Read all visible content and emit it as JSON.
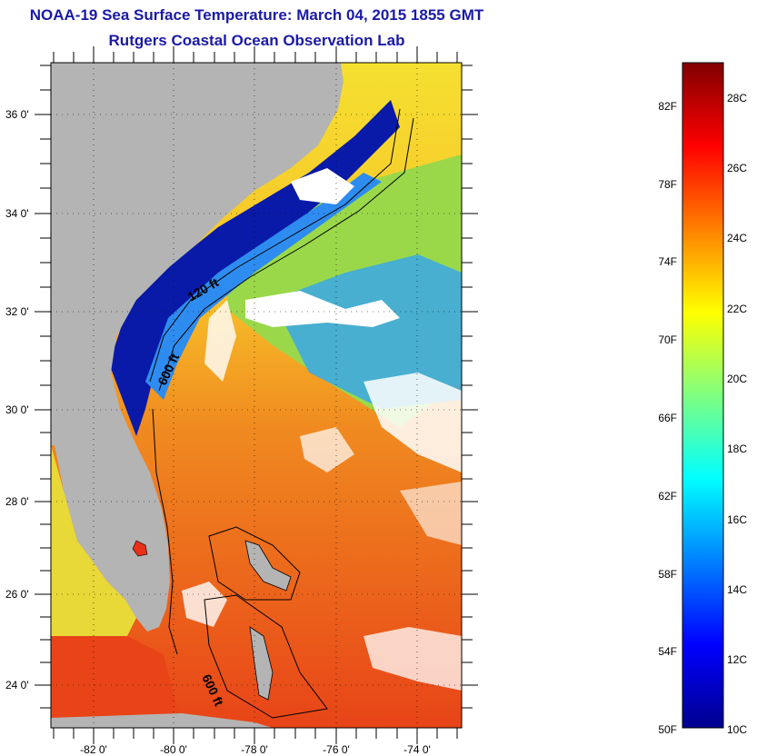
{
  "title": {
    "line1": "NOAA-19 Sea Surface Temperature:  March 04, 2015 1855 GMT",
    "line2": "Rutgers Coastal Ocean Observation Lab"
  },
  "map": {
    "lat_labels": [
      "36 0'",
      "34 0'",
      "32 0'",
      "30 0'",
      "28 0'",
      "26 0'",
      "24 0'"
    ],
    "lon_labels": [
      "-82 0'",
      "-80 0'",
      "-78 0'",
      "-76 0'",
      "-74 0'"
    ],
    "contour_labels": [
      "120 ft",
      "600 ft",
      "600 ft"
    ],
    "colors": {
      "land": "#b4b4b4",
      "cloud": "#ffffff",
      "cold": "#0a1aa8",
      "cool": "#2e8cf0",
      "mid": "#f7e020",
      "warm": "#f08020",
      "hot": "#e83018"
    }
  },
  "colorbar": {
    "f_labels": [
      "82F",
      "78F",
      "74F",
      "70F",
      "66F",
      "62F",
      "58F",
      "54F",
      "50F"
    ],
    "c_labels": [
      "28C",
      "26C",
      "24C",
      "22C",
      "20C",
      "18C",
      "16C",
      "14C",
      "12C",
      "10C"
    ],
    "colormap": [
      "#00008f",
      "#0000ff",
      "#0080ff",
      "#00ffff",
      "#80ff80",
      "#ffff00",
      "#ff8000",
      "#ff0000",
      "#800000"
    ]
  }
}
